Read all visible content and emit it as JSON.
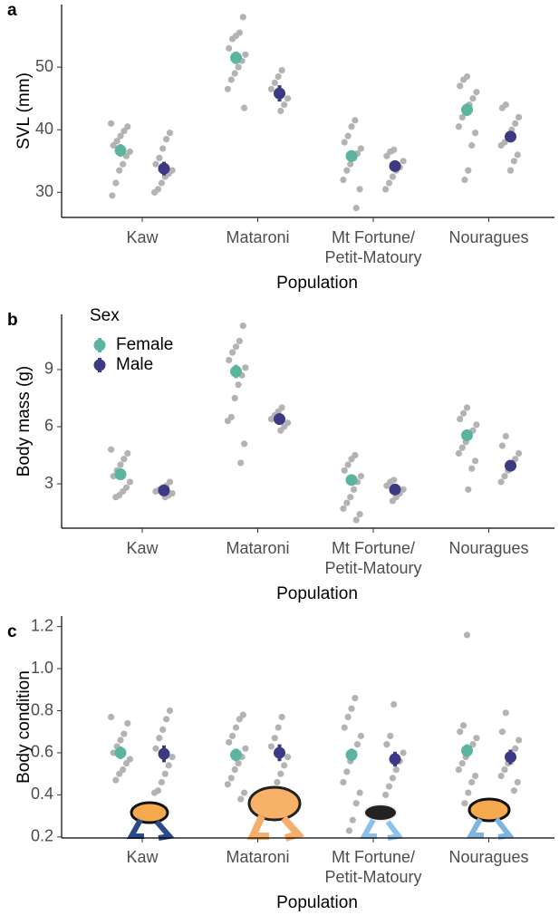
{
  "chart_data": [
    {
      "type": "dot",
      "panel_label": "a",
      "xlabel": "Population",
      "ylabel": "SVL (mm)",
      "categories": [
        "Kaw",
        "Mataroni",
        "Mt Fortune/\nPetit-Matoury",
        "Nouragues"
      ],
      "ylim": [
        26,
        60
      ],
      "yticks": [
        30,
        40,
        50
      ],
      "points_color": "#b3b3b3",
      "series": [
        {
          "name": "Female",
          "color": "#5ab4a0",
          "values": [
            36.7,
            51.5,
            35.8,
            43.2
          ],
          "errors": [
            1.0,
            1.0,
            0.9,
            1.0
          ],
          "points": [
            [
              41,
              40.5,
              39.8,
              39,
              38.2,
              37.5,
              36.5,
              35.8,
              34.5,
              33.5,
              31.5,
              29.5
            ],
            [
              58,
              55.5,
              55,
              54.5,
              53,
              52,
              51,
              50,
              49,
              48,
              46.5,
              43.5
            ],
            [
              41.5,
              40.5,
              39,
              38,
              37,
              36.2,
              35.5,
              34.5,
              33.5,
              32,
              30.5,
              27.5
            ],
            [
              48.5,
              48,
              47,
              46,
              45,
              44,
              43,
              42,
              40.5,
              39.5,
              37.5,
              33.5,
              32
            ]
          ]
        },
        {
          "name": "Male",
          "color": "#3b3a82",
          "values": [
            33.8,
            45.8,
            34.2,
            38.9
          ],
          "errors": [
            1.1,
            1.3,
            0.9,
            0.9
          ],
          "points": [
            [
              39.5,
              38.5,
              37,
              35.5,
              34.5,
              33.5,
              33,
              32.5,
              31.5,
              30.5,
              30
            ],
            [
              49.5,
              48.5,
              47.5,
              46.5,
              45,
              44,
              43
            ],
            [
              36.8,
              36.5,
              35.8,
              35,
              34,
              33.5,
              32.5,
              31.5,
              30.5
            ],
            [
              44,
              43.5,
              42,
              41,
              40,
              39,
              38,
              37.5,
              36,
              35,
              33.5
            ]
          ]
        }
      ]
    },
    {
      "type": "dot",
      "panel_label": "b",
      "xlabel": "Population",
      "ylabel": "Body mass (g)",
      "categories": [
        "Kaw",
        "Mataroni",
        "Mt Fortune/\nPetit-Matoury",
        "Nouragues"
      ],
      "ylim": [
        0.67,
        11.9
      ],
      "yticks": [
        3,
        6,
        9
      ],
      "points_color": "#b3b3b3",
      "legend_title": "Sex",
      "legend": "top-left",
      "series": [
        {
          "name": "Female",
          "color": "#5ab4a0",
          "values": [
            3.5,
            8.9,
            3.2,
            5.55
          ],
          "errors": [
            0.3,
            0.35,
            0.3,
            0.3
          ],
          "points": [
            [
              4.8,
              4.6,
              4.3,
              4,
              3.7,
              3.4,
              3.1,
              2.8,
              2.6,
              2.4,
              2.3
            ],
            [
              11.3,
              10.5,
              10.2,
              9.9,
              9.5,
              9.1,
              8.7,
              8.2,
              7.5,
              6.5,
              6.3,
              5.1,
              4.1
            ],
            [
              4.5,
              4.3,
              4,
              3.7,
              3.4,
              3.1,
              2.7,
              2.3,
              2,
              1.7,
              1.4,
              1.1
            ],
            [
              7,
              6.7,
              6.4,
              6.1,
              5.8,
              5.5,
              5.2,
              4.9,
              4.6,
              4.2,
              3.8,
              2.7
            ]
          ]
        },
        {
          "name": "Male",
          "color": "#3b3a82",
          "values": [
            2.65,
            6.4,
            2.7,
            3.95
          ],
          "errors": [
            0.2,
            0.3,
            0.2,
            0.3
          ],
          "points": [
            [
              3.1,
              2.9,
              2.8,
              2.7,
              2.6,
              2.5,
              2.4,
              2.3
            ],
            [
              7,
              6.8,
              6.6,
              6.4,
              6.2,
              6,
              5.8
            ],
            [
              3.2,
              3.1,
              2.9,
              2.7,
              2.5,
              2.3,
              2.1
            ],
            [
              5.5,
              5,
              4.6,
              4.3,
              4,
              3.7,
              3.4,
              3.1
            ]
          ]
        }
      ]
    },
    {
      "type": "dot",
      "panel_label": "c",
      "xlabel": "Population",
      "ylabel": "Body condition",
      "categories": [
        "Kaw",
        "Mataroni",
        "Mt Fortune/\nPetit-Matoury",
        "Nouragues"
      ],
      "ylim": [
        0.195,
        1.25
      ],
      "yticks": [
        0.2,
        0.4,
        0.6,
        0.8,
        {
          "value": 1,
          "label": "1.0"
        },
        1.2
      ],
      "points_color": "#b3b3b3",
      "series": [
        {
          "name": "Female",
          "color": "#5ab4a0",
          "values": [
            0.6,
            0.59,
            0.59,
            0.61
          ],
          "errors": [
            0.03,
            0.03,
            0.03,
            0.03
          ],
          "points": [
            [
              0.77,
              0.74,
              0.69,
              0.66,
              0.63,
              0.6,
              0.57,
              0.55,
              0.52,
              0.5,
              0.47
            ],
            [
              0.78,
              0.76,
              0.72,
              0.68,
              0.65,
              0.62,
              0.58,
              0.55,
              0.52,
              0.48,
              0.45,
              0.41,
              0.38
            ],
            [
              0.86,
              0.81,
              0.77,
              0.72,
              0.68,
              0.64,
              0.6,
              0.56,
              0.51,
              0.46,
              0.41,
              0.36,
              0.28,
              0.23
            ],
            [
              1.16,
              0.73,
              0.7,
              0.67,
              0.64,
              0.61,
              0.58,
              0.55,
              0.52,
              0.49,
              0.46,
              0.41,
              0.36
            ]
          ]
        },
        {
          "name": "Male",
          "color": "#3b3a82",
          "values": [
            0.595,
            0.6,
            0.57,
            0.58
          ],
          "errors": [
            0.04,
            0.04,
            0.035,
            0.035
          ],
          "points": [
            [
              0.8,
              0.76,
              0.71,
              0.67,
              0.62,
              0.58,
              0.54,
              0.5,
              0.46,
              0.42,
              0.41
            ],
            [
              0.77,
              0.72,
              0.67,
              0.63,
              0.58,
              0.54,
              0.5,
              0.46
            ],
            [
              0.83,
              0.68,
              0.64,
              0.6,
              0.56,
              0.52,
              0.48,
              0.44,
              0.4
            ],
            [
              0.79,
              0.7,
              0.66,
              0.62,
              0.58,
              0.55,
              0.52,
              0.49,
              0.46,
              0.42
            ]
          ]
        }
      ]
    }
  ]
}
